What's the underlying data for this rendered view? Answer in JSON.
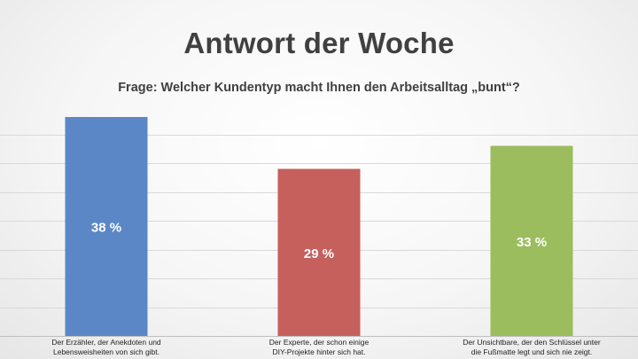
{
  "chart_data": {
    "type": "bar",
    "title": "Antwort der Woche",
    "subtitle": "Frage: Welcher Kundentyp macht Ihnen den Arbeitsalltag „bunt“?",
    "categories": [
      [
        "Der Erzähler, der Anekdoten und",
        "Lebensweisheiten von sich gibt."
      ],
      [
        "Der Experte, der schon einige",
        "DIY-Projekte hinter sich hat."
      ],
      [
        "Der Unsichtbare, der den Schlüssel unter",
        "die Fußmatte legt und sich nie zeigt."
      ]
    ],
    "values": [
      38,
      29,
      33
    ],
    "value_labels": [
      "38 %",
      "29 %",
      "33 %"
    ],
    "colors": [
      "#5b87c6",
      "#c6605d",
      "#9bbd5d"
    ],
    "ylim": [
      0,
      40
    ],
    "grid": true,
    "legend": "none"
  }
}
